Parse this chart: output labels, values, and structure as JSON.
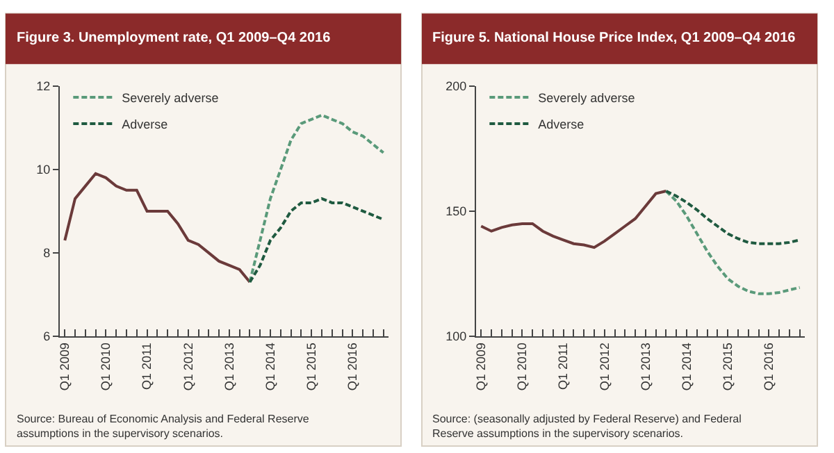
{
  "chart_data": [
    {
      "type": "line",
      "title": "Figure 3. Unemployment rate, Q1 2009–Q4 2016",
      "categories": [
        "Q1 2009",
        null,
        null,
        null,
        "Q1 2010",
        null,
        null,
        null,
        "Q1 2011",
        null,
        null,
        null,
        "Q1 2012",
        null,
        null,
        null,
        "Q1 2013",
        null,
        null,
        null,
        "Q1 2014",
        null,
        null,
        null,
        "Q1 2015",
        null,
        null,
        null,
        "Q1 2016",
        null,
        null,
        null
      ],
      "series": [
        {
          "color": "#6b3a3a",
          "line_style": "solid",
          "values": [
            8.3,
            9.3,
            9.6,
            9.9,
            9.8,
            9.6,
            9.5,
            9.5,
            9.0,
            9.0,
            9.0,
            8.7,
            8.3,
            8.2,
            8.0,
            7.8,
            7.7,
            7.6,
            7.3,
            null,
            null,
            null,
            null,
            null,
            null,
            null,
            null,
            null,
            null,
            null,
            null,
            null
          ]
        },
        {
          "name": "Severely adverse",
          "color": "#5a9a7a",
          "line_style": "dashed",
          "values": [
            null,
            null,
            null,
            null,
            null,
            null,
            null,
            null,
            null,
            null,
            null,
            null,
            null,
            null,
            null,
            null,
            null,
            null,
            7.3,
            8.3,
            9.3,
            10.0,
            10.7,
            11.1,
            11.2,
            11.3,
            11.2,
            11.1,
            10.9,
            10.8,
            10.6,
            10.4
          ]
        },
        {
          "name": "Adverse",
          "color": "#1f5a40",
          "line_style": "dashed",
          "values": [
            null,
            null,
            null,
            null,
            null,
            null,
            null,
            null,
            null,
            null,
            null,
            null,
            null,
            null,
            null,
            null,
            null,
            null,
            7.3,
            7.7,
            8.3,
            8.6,
            9.0,
            9.2,
            9.2,
            9.3,
            9.2,
            9.2,
            9.1,
            9.0,
            8.9,
            8.8
          ]
        }
      ],
      "ylim": [
        6,
        12
      ],
      "yticks": [
        6,
        8,
        10,
        12
      ],
      "grid": false,
      "legend": "top left",
      "annotations": [
        "Source: Bureau of Economic Analysis and Federal Reserve assumptions in the supervisory scenarios."
      ]
    },
    {
      "type": "line",
      "title": "Figure 5. National House Price Index, Q1 2009–Q4 2016",
      "categories": [
        "Q1 2009",
        null,
        null,
        null,
        "Q1 2010",
        null,
        null,
        null,
        "Q1 2011",
        null,
        null,
        null,
        "Q1 2012",
        null,
        null,
        null,
        "Q1 2013",
        null,
        null,
        null,
        "Q1 2014",
        null,
        null,
        null,
        "Q1 2015",
        null,
        null,
        null,
        "Q1 2016",
        null,
        null,
        null
      ],
      "series": [
        {
          "color": "#6b3a3a",
          "line_style": "solid",
          "values": [
            144,
            142,
            143.5,
            144.5,
            145,
            145,
            142,
            140,
            138.5,
            137,
            136.5,
            135.5,
            138,
            141,
            144,
            147,
            152,
            157,
            158,
            null,
            null,
            null,
            null,
            null,
            null,
            null,
            null,
            null,
            null,
            null,
            null,
            null
          ]
        },
        {
          "name": "Severely adverse",
          "color": "#5a9a7a",
          "line_style": "dashed",
          "values": [
            null,
            null,
            null,
            null,
            null,
            null,
            null,
            null,
            null,
            null,
            null,
            null,
            null,
            null,
            null,
            null,
            null,
            null,
            158,
            154,
            148,
            141,
            134,
            128,
            123,
            120,
            118,
            117,
            117,
            117.5,
            118.5,
            119.5
          ]
        },
        {
          "name": "Adverse",
          "color": "#1f5a40",
          "line_style": "dashed",
          "values": [
            null,
            null,
            null,
            null,
            null,
            null,
            null,
            null,
            null,
            null,
            null,
            null,
            null,
            null,
            null,
            null,
            null,
            null,
            158,
            156,
            153.5,
            150.5,
            147,
            144,
            141,
            139,
            137.5,
            137,
            137,
            137,
            137.5,
            138.5
          ]
        }
      ],
      "ylim": [
        100,
        200
      ],
      "yticks": [
        100,
        150,
        200
      ],
      "grid": false,
      "legend": "top left",
      "annotations": [
        "Source: (seasonally adjusted by Federal Reserve) and Federal Reserve assumptions in the supervisory scenarios."
      ]
    }
  ]
}
